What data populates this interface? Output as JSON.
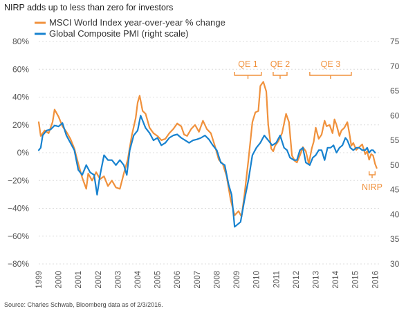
{
  "title": "NIRP adds up to less than zero for investors",
  "source": "Source: Charles Schwab, Bloomberg data as of 2/3/2016.",
  "chart_data": {
    "type": "line",
    "title": "NIRP adds up to less than zero for investors",
    "x_range": [
      1999,
      2016.2
    ],
    "x_ticks": [
      "1999",
      "2000",
      "2001",
      "2002",
      "2003",
      "2004",
      "2005",
      "2006",
      "2007",
      "2008",
      "2009",
      "2010",
      "2011",
      "2012",
      "2013",
      "2014",
      "2015",
      "2016"
    ],
    "y_left": {
      "range": [
        -80,
        80
      ],
      "ticks": [
        "80%",
        "60%",
        "40%",
        "20%",
        "0%",
        "−20%",
        "−40%",
        "−60%",
        "−80%"
      ],
      "tick_values": [
        80,
        60,
        40,
        20,
        0,
        -20,
        -40,
        -60,
        -80
      ]
    },
    "y_right": {
      "range": [
        30,
        75
      ],
      "ticks": [
        "75",
        "70",
        "65",
        "60",
        "55",
        "50",
        "45",
        "40",
        "35",
        "30"
      ],
      "tick_values": [
        75,
        70,
        65,
        60,
        55,
        50,
        45,
        40,
        35,
        30
      ]
    },
    "grid": true,
    "legend": {
      "position": "top-left"
    },
    "series": [
      {
        "name": "MSCI World Index year-over-year % change",
        "axis": "left",
        "color": "#f0913c",
        "points": [
          [
            1999.0,
            22
          ],
          [
            1999.1,
            12
          ],
          [
            1999.3,
            16
          ],
          [
            1999.5,
            14
          ],
          [
            1999.7,
            22
          ],
          [
            1999.8,
            31
          ],
          [
            2000.0,
            26
          ],
          [
            2000.2,
            19
          ],
          [
            2000.4,
            15
          ],
          [
            2000.6,
            10
          ],
          [
            2000.8,
            3
          ],
          [
            2001.0,
            -8
          ],
          [
            2001.2,
            -18
          ],
          [
            2001.4,
            -26
          ],
          [
            2001.5,
            -15
          ],
          [
            2001.7,
            -20
          ],
          [
            2001.9,
            -14
          ],
          [
            2002.1,
            -19
          ],
          [
            2002.3,
            -17
          ],
          [
            2002.5,
            -24
          ],
          [
            2002.7,
            -20
          ],
          [
            2002.9,
            -25
          ],
          [
            2003.1,
            -26
          ],
          [
            2003.3,
            -15
          ],
          [
            2003.5,
            -5
          ],
          [
            2003.7,
            12
          ],
          [
            2003.9,
            25
          ],
          [
            2004.0,
            36
          ],
          [
            2004.1,
            41
          ],
          [
            2004.25,
            30
          ],
          [
            2004.4,
            28
          ],
          [
            2004.6,
            18
          ],
          [
            2004.8,
            14
          ],
          [
            2005.0,
            12
          ],
          [
            2005.2,
            9
          ],
          [
            2005.4,
            10
          ],
          [
            2005.6,
            14
          ],
          [
            2005.8,
            17
          ],
          [
            2006.0,
            21
          ],
          [
            2006.2,
            19
          ],
          [
            2006.35,
            13
          ],
          [
            2006.5,
            12
          ],
          [
            2006.7,
            17
          ],
          [
            2006.9,
            20
          ],
          [
            2007.1,
            15
          ],
          [
            2007.3,
            23
          ],
          [
            2007.5,
            17
          ],
          [
            2007.7,
            14
          ],
          [
            2007.9,
            5
          ],
          [
            2008.1,
            -5
          ],
          [
            2008.3,
            -8
          ],
          [
            2008.5,
            -17
          ],
          [
            2008.7,
            -34
          ],
          [
            2008.9,
            -45
          ],
          [
            2009.1,
            -42
          ],
          [
            2009.25,
            -46
          ],
          [
            2009.4,
            -30
          ],
          [
            2009.6,
            -5
          ],
          [
            2009.8,
            22
          ],
          [
            2009.95,
            29
          ],
          [
            2010.1,
            30
          ],
          [
            2010.2,
            48
          ],
          [
            2010.35,
            51
          ],
          [
            2010.5,
            44
          ],
          [
            2010.6,
            20
          ],
          [
            2010.75,
            3
          ],
          [
            2010.85,
            1
          ],
          [
            2010.95,
            5
          ],
          [
            2011.1,
            8
          ],
          [
            2011.3,
            14
          ],
          [
            2011.5,
            28
          ],
          [
            2011.65,
            22
          ],
          [
            2011.8,
            -2
          ],
          [
            2011.95,
            -6
          ],
          [
            2012.05,
            -7
          ],
          [
            2012.2,
            -2
          ],
          [
            2012.35,
            4
          ],
          [
            2012.5,
            1
          ],
          [
            2012.65,
            -8
          ],
          [
            2012.8,
            3
          ],
          [
            2012.9,
            8
          ],
          [
            2013.0,
            18
          ],
          [
            2013.15,
            10
          ],
          [
            2013.3,
            13
          ],
          [
            2013.45,
            23
          ],
          [
            2013.55,
            19
          ],
          [
            2013.7,
            20
          ],
          [
            2013.85,
            14
          ],
          [
            2013.95,
            24
          ],
          [
            2014.05,
            20
          ],
          [
            2014.2,
            12
          ],
          [
            2014.3,
            16
          ],
          [
            2014.45,
            18
          ],
          [
            2014.6,
            22
          ],
          [
            2014.7,
            14
          ],
          [
            2014.8,
            5
          ],
          [
            2014.9,
            7
          ],
          [
            2015.05,
            2
          ],
          [
            2015.2,
            4
          ],
          [
            2015.35,
            6
          ],
          [
            2015.5,
            -1
          ],
          [
            2015.6,
            1
          ],
          [
            2015.7,
            -5
          ],
          [
            2015.8,
            -1
          ],
          [
            2015.9,
            -2
          ],
          [
            2016.0,
            -8
          ],
          [
            2016.08,
            -11
          ]
        ]
      },
      {
        "name": "Global Composite PMI (right scale)",
        "axis": "right",
        "color": "#1782cf",
        "points": [
          [
            1999.0,
            53
          ],
          [
            1999.1,
            53.5
          ],
          [
            1999.2,
            56
          ],
          [
            1999.4,
            57
          ],
          [
            1999.6,
            57.2
          ],
          [
            1999.8,
            58
          ],
          [
            2000.0,
            57.8
          ],
          [
            2000.2,
            58.5
          ],
          [
            2000.4,
            56
          ],
          [
            2000.6,
            54.5
          ],
          [
            2000.8,
            53
          ],
          [
            2001.0,
            49
          ],
          [
            2001.2,
            48
          ],
          [
            2001.4,
            50
          ],
          [
            2001.6,
            48.5
          ],
          [
            2001.8,
            48
          ],
          [
            2001.95,
            44
          ],
          [
            2002.1,
            48
          ],
          [
            2002.3,
            52
          ],
          [
            2002.5,
            51
          ],
          [
            2002.7,
            51
          ],
          [
            2002.9,
            50
          ],
          [
            2003.1,
            51
          ],
          [
            2003.3,
            50
          ],
          [
            2003.45,
            48
          ],
          [
            2003.6,
            53
          ],
          [
            2003.8,
            56
          ],
          [
            2004.0,
            57
          ],
          [
            2004.15,
            60
          ],
          [
            2004.25,
            59
          ],
          [
            2004.4,
            57.5
          ],
          [
            2004.6,
            56.5
          ],
          [
            2004.8,
            55
          ],
          [
            2005.0,
            55.5
          ],
          [
            2005.2,
            54
          ],
          [
            2005.4,
            54.5
          ],
          [
            2005.6,
            55.5
          ],
          [
            2005.8,
            56
          ],
          [
            2006.0,
            56.2
          ],
          [
            2006.2,
            55.5
          ],
          [
            2006.4,
            55
          ],
          [
            2006.6,
            54.5
          ],
          [
            2006.8,
            55
          ],
          [
            2007.0,
            55.2
          ],
          [
            2007.2,
            55.5
          ],
          [
            2007.4,
            56
          ],
          [
            2007.6,
            55.2
          ],
          [
            2007.8,
            54
          ],
          [
            2008.0,
            53
          ],
          [
            2008.2,
            50.5
          ],
          [
            2008.4,
            50
          ],
          [
            2008.6,
            46
          ],
          [
            2008.75,
            44
          ],
          [
            2008.9,
            37.5
          ],
          [
            2009.05,
            38
          ],
          [
            2009.2,
            38.5
          ],
          [
            2009.4,
            43
          ],
          [
            2009.6,
            47
          ],
          [
            2009.8,
            52
          ],
          [
            2010.0,
            53.5
          ],
          [
            2010.2,
            54.5
          ],
          [
            2010.4,
            56
          ],
          [
            2010.6,
            55
          ],
          [
            2010.8,
            54
          ],
          [
            2011.0,
            54.5
          ],
          [
            2011.2,
            56
          ],
          [
            2011.4,
            53.5
          ],
          [
            2011.55,
            53
          ],
          [
            2011.7,
            51.5
          ],
          [
            2011.9,
            51
          ],
          [
            2012.05,
            51
          ],
          [
            2012.2,
            53
          ],
          [
            2012.35,
            53.5
          ],
          [
            2012.5,
            50.5
          ],
          [
            2012.7,
            50
          ],
          [
            2012.85,
            51.5
          ],
          [
            2013.0,
            52
          ],
          [
            2013.15,
            53
          ],
          [
            2013.3,
            53
          ],
          [
            2013.45,
            51
          ],
          [
            2013.6,
            53.5
          ],
          [
            2013.75,
            53.5
          ],
          [
            2013.9,
            54
          ],
          [
            2014.05,
            52.5
          ],
          [
            2014.2,
            53.5
          ],
          [
            2014.35,
            54
          ],
          [
            2014.5,
            55.5
          ],
          [
            2014.6,
            55
          ],
          [
            2014.75,
            53.5
          ],
          [
            2014.9,
            53
          ],
          [
            2015.05,
            53.5
          ],
          [
            2015.2,
            53.5
          ],
          [
            2015.35,
            53
          ],
          [
            2015.5,
            53
          ],
          [
            2015.6,
            53.5
          ],
          [
            2015.7,
            52.5
          ],
          [
            2015.8,
            53
          ],
          [
            2015.9,
            53
          ],
          [
            2016.0,
            52.5
          ]
        ]
      }
    ],
    "annotations": [
      {
        "label": "QE 1",
        "x_start": 2008.9,
        "x_end": 2010.25
      },
      {
        "label": "QE 2",
        "x_start": 2010.85,
        "x_end": 2011.55
      },
      {
        "label": "QE 3",
        "x_start": 2012.7,
        "x_end": 2014.8
      },
      {
        "label": "NIRP",
        "x_start": 2015.7,
        "x_end": 2016.0
      }
    ]
  }
}
